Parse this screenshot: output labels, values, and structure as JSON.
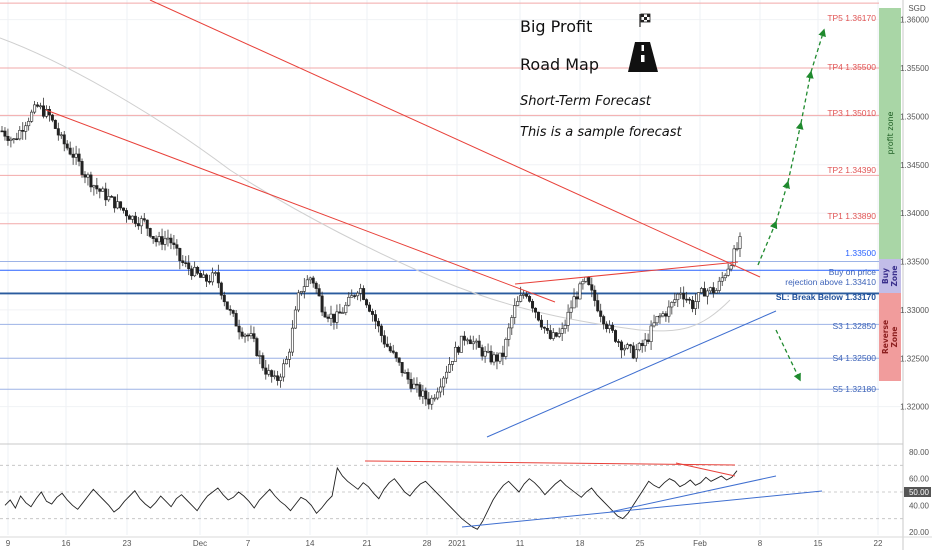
{
  "header": {
    "title": "Big Profit",
    "subtitle": "Road Map",
    "line3": "Short-Term Forecast",
    "line4": "This is a sample forecast"
  },
  "axis": {
    "currency": "SGD",
    "x_ticks": [
      "9",
      "16",
      "23",
      "Dec",
      "7",
      "14",
      "21",
      "28",
      "2021",
      "11",
      "18",
      "25",
      "Feb",
      "8",
      "15",
      "22"
    ],
    "y_ticks": [
      "1.36000",
      "1.35500",
      "1.35000",
      "1.34500",
      "1.34000",
      "1.33500",
      "1.33000",
      "1.32500",
      "1.32000"
    ],
    "osc_ticks": [
      "80.00",
      "60.00",
      "40.00",
      "20.00"
    ],
    "osc_current": "50.00",
    "price_current": "1.33500"
  },
  "levels": {
    "tp5": "TP5 1.36170",
    "tp4": "TP4 1.35500",
    "tp3": "TP3 1.35010",
    "tp2": "TP2 1.34390",
    "tp1": "TP1 1.33890",
    "buy_line1": "Buy on price",
    "buy_line2": "rejection above 1.33410",
    "sl": "SL: Break Below 1.33170",
    "s3": "S3 1.32850",
    "s4": "S4 1.32500",
    "s5": "S5 1.32180"
  },
  "zones": {
    "profit": "profit zone",
    "buy_1": "Buy",
    "buy_2": "Zone",
    "reverse_1": "Reverse",
    "reverse_2": "Zone"
  },
  "colors": {
    "tp_line": "#f2a9a9",
    "support_line": "#9db3e6",
    "blue_level": "#2962ff",
    "sl_line": "#2a5b9e",
    "trend_red": "#e8413a",
    "trend_blue": "#3f6fd0",
    "arrow_green": "#1f8a2e",
    "profit_zone": "#a9d6a6",
    "buy_zone": "#c2bde8",
    "reverse_zone": "#f19c9c"
  },
  "chart_data": {
    "type": "candlestick",
    "x_ticks": [
      "9",
      "16",
      "23",
      "Dec",
      "7",
      "14",
      "21",
      "28",
      "2021",
      "11",
      "18",
      "25",
      "Feb",
      "8",
      "15",
      "22"
    ],
    "y_ticks": [
      1.36,
      1.355,
      1.35,
      1.345,
      1.34,
      1.335,
      1.33,
      1.325,
      1.32
    ],
    "ylim": [
      1.318,
      1.3612
    ],
    "price_path": [
      1.3485,
      1.3475,
      1.3495,
      1.351,
      1.35,
      1.3475,
      1.346,
      1.344,
      1.3425,
      1.3415,
      1.3405,
      1.3395,
      1.339,
      1.337,
      1.3375,
      1.335,
      1.334,
      1.333,
      1.3335,
      1.33,
      1.328,
      1.327,
      1.324,
      1.3225,
      1.325,
      1.332,
      1.3335,
      1.33,
      1.329,
      1.3305,
      1.3325,
      1.33,
      1.327,
      1.325,
      1.323,
      1.3215,
      1.3205,
      1.323,
      1.3255,
      1.3275,
      1.326,
      1.325,
      1.325,
      1.33,
      1.332,
      1.3295,
      1.327,
      1.3275,
      1.331,
      1.333,
      1.3305,
      1.328,
      1.3265,
      1.3255,
      1.3265,
      1.329,
      1.33,
      1.332,
      1.3305,
      1.332,
      1.332,
      1.3345,
      1.337
    ],
    "oscillator": {
      "ylim": [
        20,
        80
      ],
      "values": [
        40,
        44,
        38,
        47,
        42,
        39,
        45,
        50,
        43,
        41,
        46,
        49,
        44,
        40,
        37,
        42,
        47,
        52,
        48,
        44,
        40,
        35,
        38,
        43,
        47,
        51,
        45,
        41,
        38,
        42,
        47,
        43,
        39,
        45,
        48,
        44,
        40,
        36,
        42,
        47,
        50,
        53,
        48,
        44,
        46,
        50,
        47,
        43,
        38,
        44,
        48,
        52,
        47,
        43,
        40,
        36,
        41,
        46,
        44,
        40,
        34,
        38,
        43,
        47,
        68,
        62,
        58,
        55,
        52,
        57,
        54,
        49,
        45,
        52,
        57,
        60,
        55,
        50,
        47,
        52,
        56,
        58,
        54,
        50,
        46,
        42,
        38,
        34,
        30,
        27,
        24,
        22,
        28,
        36,
        44,
        50,
        55,
        58,
        54,
        50,
        56,
        60,
        57,
        53,
        48,
        52,
        56,
        59,
        55,
        52,
        49,
        46,
        50,
        53,
        48,
        44,
        40,
        36,
        32,
        30,
        34,
        40,
        46,
        52,
        58,
        55,
        53,
        57,
        60,
        58,
        54,
        56,
        59,
        55,
        57,
        61,
        58,
        60,
        62,
        59,
        61,
        66
      ]
    }
  }
}
